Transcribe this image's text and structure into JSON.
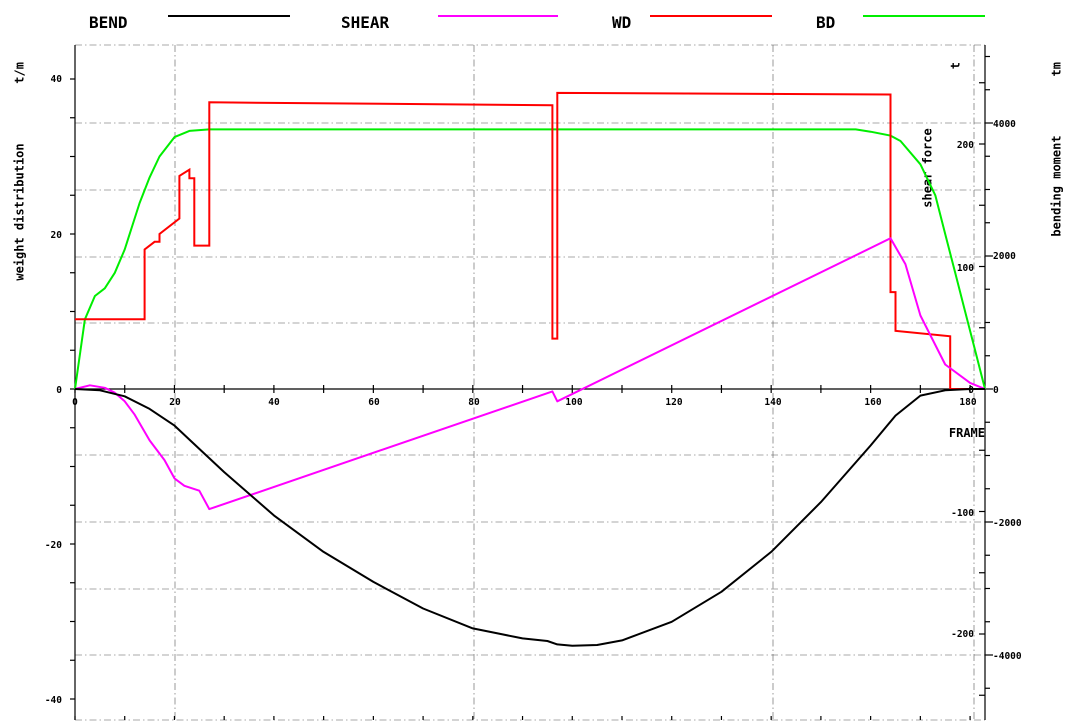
{
  "chart_data": {
    "type": "line",
    "legend": [
      {
        "label": "BEND",
        "color": "#000000"
      },
      {
        "label": "SHEAR",
        "color": "#ff00ff"
      },
      {
        "label": "WD",
        "color": "#ff0000"
      },
      {
        "label": "BD",
        "color": "#00ee00"
      }
    ],
    "axes": {
      "x": {
        "label": "FRAME",
        "range": [
          0,
          183
        ],
        "ticks": [
          0,
          20,
          40,
          60,
          80,
          100,
          120,
          140,
          160,
          180
        ]
      },
      "y_left": {
        "label": "weight distribution",
        "unit": "t/m",
        "range": [
          -45,
          45
        ],
        "ticks": [
          40,
          20,
          0,
          -20,
          -40
        ]
      },
      "y_shear": {
        "label": "shear force",
        "unit": "t",
        "range": [
          -256,
          256
        ],
        "ticks": [
          200,
          100,
          0,
          -100,
          -200
        ]
      },
      "y_bending": {
        "label": "bending moment",
        "unit": "tm",
        "range": [
          -5150,
          5150
        ],
        "ticks": [
          4000,
          2000,
          0,
          -2000,
          -4000
        ]
      }
    },
    "grid": true,
    "series": [
      {
        "name": "BEND",
        "axis": "y_bending",
        "color": "#000000",
        "points": [
          [
            0,
            0
          ],
          [
            5,
            -20
          ],
          [
            10,
            -110
          ],
          [
            15,
            -300
          ],
          [
            20,
            -550
          ],
          [
            25,
            -900
          ],
          [
            30,
            -1250
          ],
          [
            40,
            -1900
          ],
          [
            50,
            -2450
          ],
          [
            60,
            -2900
          ],
          [
            70,
            -3300
          ],
          [
            80,
            -3600
          ],
          [
            90,
            -3750
          ],
          [
            95,
            -3790
          ],
          [
            97,
            -3840
          ],
          [
            100,
            -3860
          ],
          [
            105,
            -3850
          ],
          [
            110,
            -3780
          ],
          [
            120,
            -3500
          ],
          [
            130,
            -3050
          ],
          [
            140,
            -2450
          ],
          [
            150,
            -1700
          ],
          [
            160,
            -850
          ],
          [
            165,
            -400
          ],
          [
            170,
            -100
          ],
          [
            175,
            -20
          ],
          [
            180,
            0
          ],
          [
            183,
            0
          ]
        ]
      },
      {
        "name": "SHEAR",
        "axis": "y_shear",
        "color": "#ff00ff",
        "points": [
          [
            0,
            0
          ],
          [
            3,
            3
          ],
          [
            6,
            1
          ],
          [
            8,
            -3
          ],
          [
            10,
            -10
          ],
          [
            12,
            -21
          ],
          [
            15,
            -42
          ],
          [
            18,
            -58
          ],
          [
            20,
            -73
          ],
          [
            22,
            -79
          ],
          [
            25,
            -83
          ],
          [
            27,
            -98
          ],
          [
            96,
            -2
          ],
          [
            97,
            -10
          ],
          [
            164,
            123
          ],
          [
            167,
            102
          ],
          [
            170,
            60
          ],
          [
            175,
            20
          ],
          [
            180,
            5
          ],
          [
            183,
            0
          ]
        ]
      },
      {
        "name": "WD",
        "axis": "y_left",
        "color": "#ff0000",
        "points": [
          [
            0,
            9
          ],
          [
            14,
            9
          ],
          [
            14,
            18
          ],
          [
            16,
            19
          ],
          [
            17,
            19
          ],
          [
            17,
            20
          ],
          [
            21,
            22
          ],
          [
            21,
            27.5
          ],
          [
            23,
            28.3
          ],
          [
            23,
            27.2
          ],
          [
            24,
            27.2
          ],
          [
            24,
            18.5
          ],
          [
            27,
            18.5
          ],
          [
            27,
            37
          ],
          [
            96,
            36.6
          ],
          [
            96,
            6.5
          ],
          [
            97,
            6.5
          ],
          [
            97,
            38.2
          ],
          [
            164,
            38
          ],
          [
            164,
            12.5
          ],
          [
            165,
            12.5
          ],
          [
            165,
            7.5
          ],
          [
            176,
            6.8
          ],
          [
            176,
            0
          ],
          [
            183,
            0
          ]
        ]
      },
      {
        "name": "BD",
        "axis": "y_left",
        "color": "#00ee00",
        "points": [
          [
            0,
            0
          ],
          [
            2,
            9
          ],
          [
            4,
            12
          ],
          [
            6,
            13
          ],
          [
            8,
            15
          ],
          [
            10,
            18
          ],
          [
            13,
            24
          ],
          [
            15,
            27.3
          ],
          [
            17,
            30
          ],
          [
            20,
            32.5
          ],
          [
            23,
            33.3
          ],
          [
            27,
            33.5
          ],
          [
            157,
            33.5
          ],
          [
            160,
            33.2
          ],
          [
            164,
            32.7
          ],
          [
            166,
            32
          ],
          [
            170,
            29
          ],
          [
            173,
            25
          ],
          [
            175,
            20
          ],
          [
            177,
            15
          ],
          [
            179,
            10
          ],
          [
            181,
            5
          ],
          [
            183,
            0
          ]
        ]
      }
    ]
  }
}
